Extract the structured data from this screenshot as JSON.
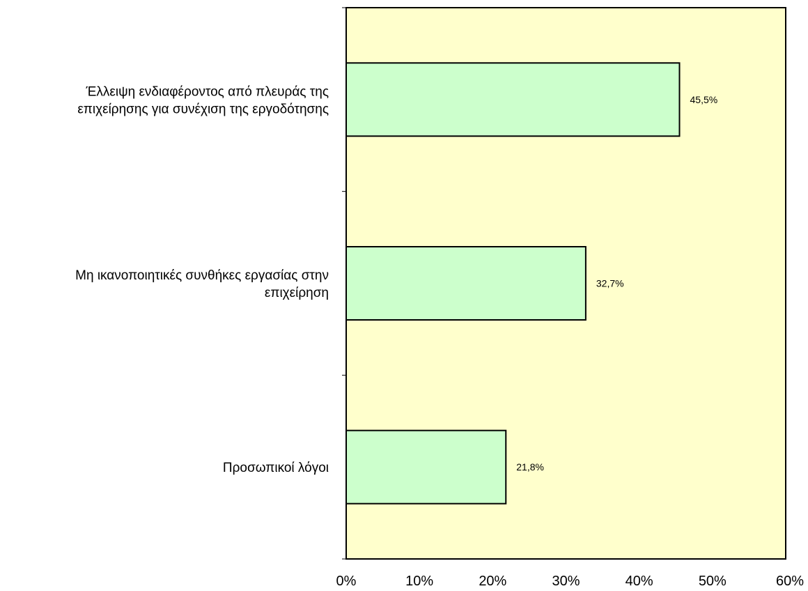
{
  "chart_data": {
    "type": "bar",
    "orientation": "horizontal",
    "title": "",
    "xlabel": "",
    "ylabel": "",
    "categories": [
      [
        "Έλλειψη ενδιαφέροντος από πλευράς της",
        "επιχείρησης για συνέχιση της εργοδότησης"
      ],
      [
        "Μη ικανοποιητικές συνθήκες εργασίας στην",
        "επιχείρηση"
      ],
      [
        "Προσωπικοί λόγοι"
      ]
    ],
    "values": [
      45.5,
      32.7,
      21.8
    ],
    "data_labels": [
      "45,5%",
      "32,7%",
      "21,8%"
    ],
    "xlim": [
      0,
      60
    ],
    "x_ticks": [
      0,
      10,
      20,
      30,
      40,
      50,
      60
    ],
    "x_tick_labels": [
      "0%",
      "10%",
      "20%",
      "30%",
      "40%",
      "50%",
      "60%"
    ],
    "grid": false,
    "legend": "none",
    "colors": {
      "plot_background": "#ffffcc",
      "bar_fill": "#ccffcc",
      "bar_stroke": "#000000",
      "axis": "#000000"
    }
  }
}
